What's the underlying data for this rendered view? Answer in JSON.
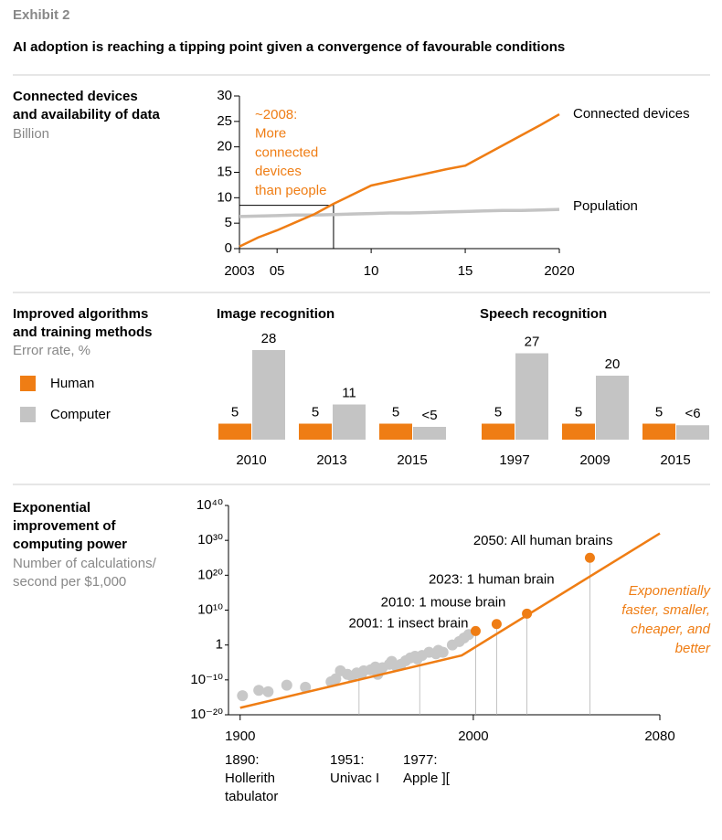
{
  "header": {
    "exhibit": "Exhibit 2",
    "title": "AI adoption is reaching a tipping point given a convergence of favourable conditions"
  },
  "chart_data": [
    {
      "type": "line",
      "label": [
        "Connected devices",
        "and availability of data"
      ],
      "unit": "Billion",
      "x": [
        2003,
        2004,
        2005,
        2006,
        2007,
        2008,
        2009,
        2010,
        2011,
        2012,
        2013,
        2014,
        2015,
        2016,
        2017,
        2018,
        2019,
        2020
      ],
      "series": [
        {
          "name": "Connected devices",
          "color": "#ef7d14",
          "values": [
            0.4,
            2.2,
            3.6,
            5.2,
            6.8,
            8.8,
            10.6,
            12.4,
            13.2,
            14,
            14.8,
            15.6,
            16.3,
            18.3,
            20.3,
            22.3,
            24.3,
            26.4
          ]
        },
        {
          "name": "Population",
          "color": "#c4c4c4",
          "values": [
            6.3,
            6.4,
            6.5,
            6.6,
            6.6,
            6.7,
            6.8,
            6.9,
            7.0,
            7.0,
            7.1,
            7.2,
            7.3,
            7.4,
            7.5,
            7.5,
            7.6,
            7.7
          ]
        }
      ],
      "xlim": [
        2003,
        2020
      ],
      "xticks": [
        2003,
        {
          "value": 2005,
          "label": "05"
        },
        {
          "value": 2010,
          "label": "10"
        },
        {
          "value": 2015,
          "label": "15"
        },
        2020
      ],
      "ylim": [
        0,
        30
      ],
      "yticks": [
        0,
        5,
        10,
        15,
        20,
        25,
        30
      ],
      "annotation": {
        "lines": [
          "~2008:",
          "More",
          "connected",
          "devices",
          "than people"
        ],
        "x": 2008,
        "y": 8.5
      }
    },
    {
      "type": "bar",
      "label": [
        "Improved algorithms",
        "and training methods"
      ],
      "unit": "Error rate, %",
      "title": "Image recognition",
      "categories": [
        "2010",
        "2013",
        "2015"
      ],
      "series": [
        {
          "name": "Human",
          "color": "#ef7d14",
          "values": [
            5,
            5,
            5
          ]
        },
        {
          "name": "Computer",
          "color": "#c4c4c4",
          "values": [
            28,
            11,
            4
          ],
          "value_labels": [
            null,
            null,
            "<5"
          ]
        }
      ]
    },
    {
      "type": "bar",
      "title": "Speech recognition",
      "categories": [
        "1997",
        "2009",
        "2015"
      ],
      "series": [
        {
          "color": "#ef7d14",
          "values": [
            5,
            5,
            5
          ]
        },
        {
          "color": "#c4c4c4",
          "values": [
            27,
            20,
            4.5
          ],
          "value_labels": [
            null,
            null,
            "<6"
          ]
        }
      ]
    },
    {
      "type": "scatter",
      "label": [
        "Exponential",
        "improvement of",
        "computing power"
      ],
      "unit": [
        "Number of calculations/",
        "second per $1,000"
      ],
      "yscale": "log",
      "color": "#c8c8c8",
      "x": [
        1901,
        1908,
        1912,
        1920,
        1928,
        1939,
        1941,
        1943,
        1946,
        1948,
        1950,
        1952,
        1953,
        1956,
        1958,
        1959,
        1961,
        1964,
        1965,
        1967,
        1969,
        1971,
        1973,
        1975,
        1976,
        1978,
        1981,
        1984,
        1985,
        1987,
        1991,
        1994,
        1996,
        1998
      ],
      "values": [
        3e-15,
        1e-13,
        4e-14,
        3e-12,
        8e-13,
        3e-11,
        2e-10,
        4e-08,
        4e-09,
        1e-09,
        1e-08,
        4e-09,
        4e-08,
        8e-08,
        5e-07,
        4e-09,
        3e-07,
        3e-06,
        2e-05,
        8e-07,
        3e-06,
        3e-05,
        0.0002,
        0.0006,
        0.0001,
        0.001,
        0.008,
        0.003,
        0.03,
        0.008,
        1,
        10,
        100,
        1000
      ],
      "trend": {
        "color": "#ef7d14",
        "x": [
          1900,
          1995,
          2080
        ],
        "values": [
          1e-18,
          0.001,
          1e+32
        ]
      },
      "milestones": {
        "color": "#ef7d14",
        "items": [
          {
            "label": "2001: 1 insect brain",
            "x": 2001,
            "value": 10000.0
          },
          {
            "label": "2010: 1 mouse brain",
            "x": 2010,
            "value": 1000000.0
          },
          {
            "label": "2023: 1 human brain",
            "x": 2023,
            "value": 1000000000.0
          },
          {
            "label": "2050: All human brains",
            "x": 2050,
            "value": 1e+25
          }
        ]
      },
      "xlim": [
        1895,
        2080
      ],
      "xticks": [
        1900,
        2000,
        2080
      ],
      "ylim": [
        1e-20,
        1e+40
      ],
      "yticks": [
        {
          "value": 1e-20,
          "label": "10⁻²⁰"
        },
        {
          "value": 1e-10,
          "label": "10⁻¹⁰"
        },
        1,
        {
          "value": 10000000000.0,
          "label": "10¹⁰"
        },
        {
          "value": 1e+20,
          "label": "10²⁰"
        },
        {
          "value": 1e+30,
          "label": "10³⁰"
        },
        {
          "value": 1e+40,
          "label": "10⁴⁰"
        }
      ],
      "notes": [
        {
          "lines": [
            "1890:",
            "Hollerith",
            "tabulator"
          ]
        },
        {
          "lines": [
            "1951:",
            "Univac I"
          ],
          "x": 1951,
          "value": 1e-07
        },
        {
          "lines": [
            "1977:",
            "Apple ]["
          ],
          "x": 1977,
          "value": 0.001
        }
      ],
      "callout": [
        "Exponentially",
        "faster, smaller,",
        "cheaper, and",
        "better"
      ]
    }
  ]
}
